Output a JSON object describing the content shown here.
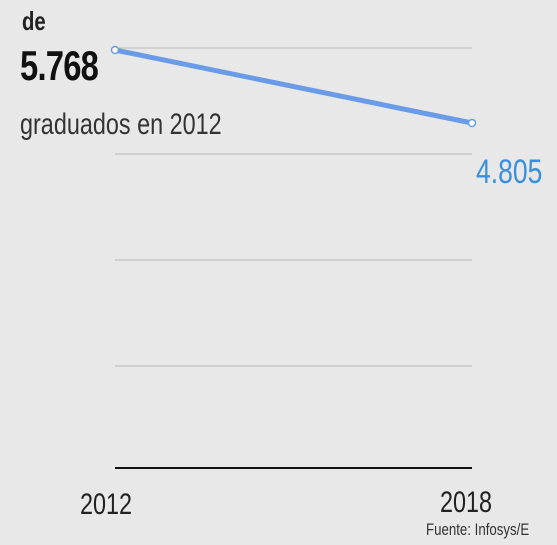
{
  "annotations": {
    "start_prefix": "de",
    "start_value": "5.768",
    "start_suffix": "graduados en 2012",
    "end_value": "4.805"
  },
  "source": "Fuente: Infosys/E",
  "colors": {
    "line": "#6a9be8",
    "end_label": "#3a8fe0",
    "grid": "#b8b8b8",
    "baseline": "#111111",
    "background": "#e8e8e8"
  },
  "chart_data": {
    "type": "line",
    "x": [
      "2012",
      "2018"
    ],
    "series": [
      {
        "values": [
          5768,
          4805
        ]
      }
    ],
    "grid": true,
    "xlabel": "",
    "ylabel": ""
  }
}
